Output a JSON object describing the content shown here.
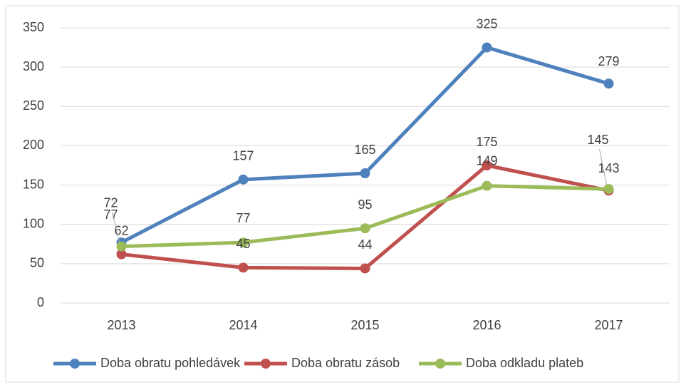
{
  "chart_data": {
    "type": "line",
    "categories": [
      "2013",
      "2014",
      "2015",
      "2016",
      "2017"
    ],
    "series": [
      {
        "name": "Doba obratu pohledávek",
        "color": "#4f81bd",
        "values": [
          77,
          157,
          165,
          325,
          279
        ]
      },
      {
        "name": "Doba obratu zásob",
        "color": "#c0504d",
        "values": [
          62,
          45,
          44,
          175,
          143
        ]
      },
      {
        "name": "Doba odkladu plateb",
        "color": "#9bbb59",
        "values": [
          72,
          77,
          95,
          149,
          145
        ]
      }
    ],
    "ylim": [
      0,
      350
    ],
    "yticks": [
      0,
      50,
      100,
      150,
      200,
      250,
      300,
      350
    ],
    "grid": true,
    "legend": "bottom"
  }
}
